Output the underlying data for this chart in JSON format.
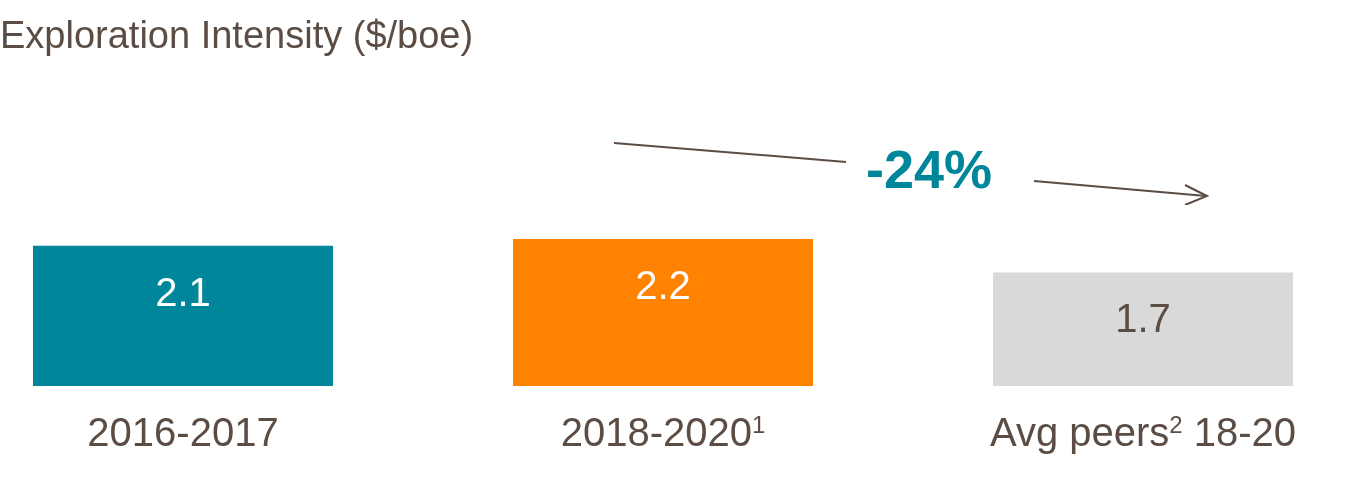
{
  "chart_data": {
    "type": "bar",
    "title": "Exploration Intensity ($/boe)",
    "categories": [
      "2016-2017",
      "2018-2020$^{1}$",
      "Avg peers$^{2}$ 18-20"
    ],
    "values": [
      2.1,
      2.2,
      1.7
    ],
    "colors": [
      "#00869a",
      "#ff8200",
      "#d9d9d9"
    ],
    "data_labels": true,
    "annotations": [
      "-24%"
    ]
  }
}
